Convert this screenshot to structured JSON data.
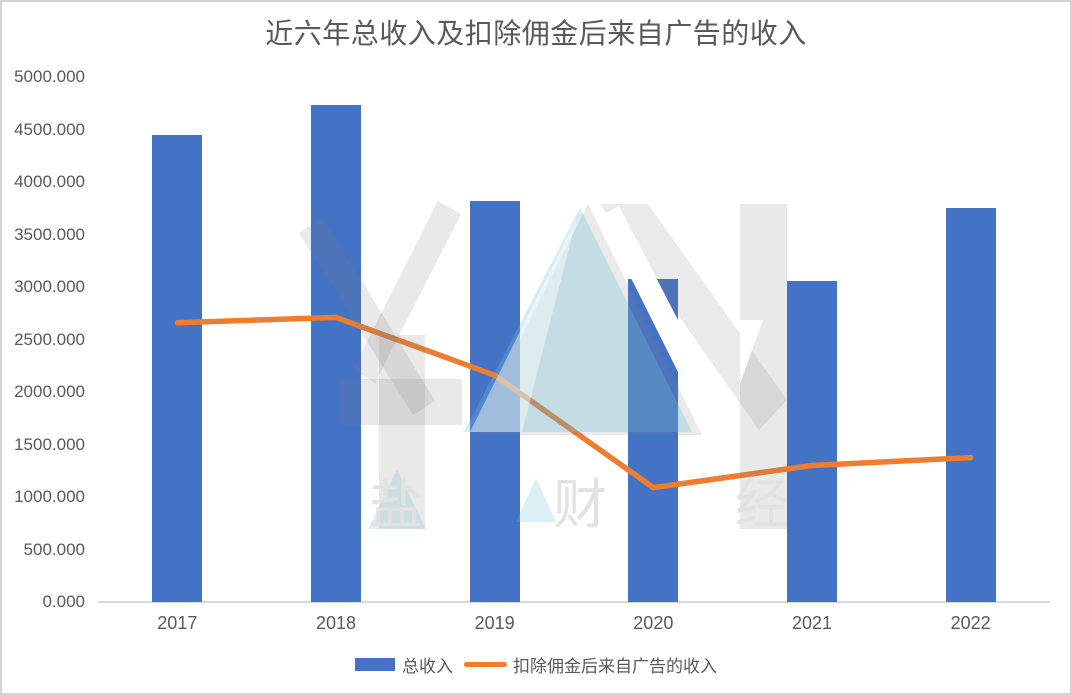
{
  "chart_data": {
    "type": "combo-bar-line",
    "title": "近六年总收入及扣除佣金后来自广告的收入",
    "categories": [
      "2017",
      "2018",
      "2019",
      "2020",
      "2021",
      "2022"
    ],
    "series": [
      {
        "name": "总收入",
        "type": "bar",
        "color": "#4472C4",
        "values": [
          4450,
          4730,
          3820,
          3080,
          3055,
          3750
        ]
      },
      {
        "name": "扣除佣金后来自广告的收入",
        "type": "line",
        "color": "#ED7D31",
        "values": [
          2660,
          2710,
          2160,
          1090,
          1300,
          1375
        ]
      }
    ],
    "ylim": [
      0,
      5000
    ],
    "ytick_step": 500,
    "yticks": [
      "5000.000",
      "4500.000",
      "4000.000",
      "3500.000",
      "3000.000",
      "2500.000",
      "2000.000",
      "1500.000",
      "1000.000",
      "500.000",
      "0.000"
    ],
    "xlabel": "",
    "ylabel": "",
    "grid": false,
    "legend_position": "bottom"
  },
  "watermark": {
    "brand": "YAN",
    "chars": [
      "盐",
      "财",
      "经"
    ]
  },
  "colors": {
    "bar": "#4472C4",
    "line": "#ED7D31",
    "text": "#595959",
    "axis": "#D9D9D9",
    "watermark_gray": "#E9E9E9",
    "watermark_cyan": "#DCEDF3"
  }
}
